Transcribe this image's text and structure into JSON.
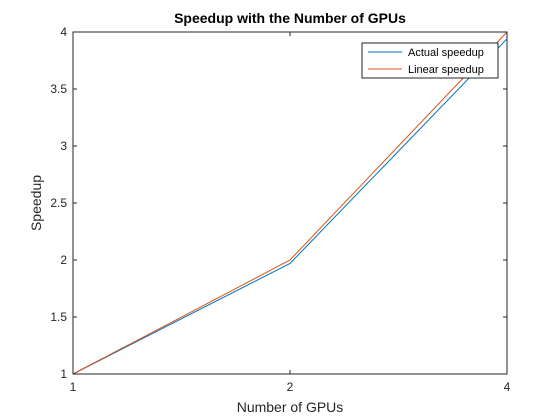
{
  "chart_data": {
    "type": "line",
    "title": "Speedup with the Number of GPUs",
    "xlabel": "Number of GPUs",
    "ylabel": "Speedup",
    "xlim": [
      1,
      4
    ],
    "ylim": [
      1,
      4
    ],
    "x_scale": "log",
    "xticks": [
      1,
      2,
      4
    ],
    "yticks": [
      1,
      1.5,
      2,
      2.5,
      3,
      3.5,
      4
    ],
    "grid": false,
    "legend_position": "top-right",
    "series": [
      {
        "name": "Actual speedup",
        "color": "#0072BD",
        "x": [
          1,
          2,
          4
        ],
        "y": [
          1,
          1.97,
          3.94
        ]
      },
      {
        "name": "Linear speedup",
        "color": "#D95319",
        "x": [
          1,
          2,
          4
        ],
        "y": [
          1,
          2,
          4
        ]
      }
    ]
  }
}
